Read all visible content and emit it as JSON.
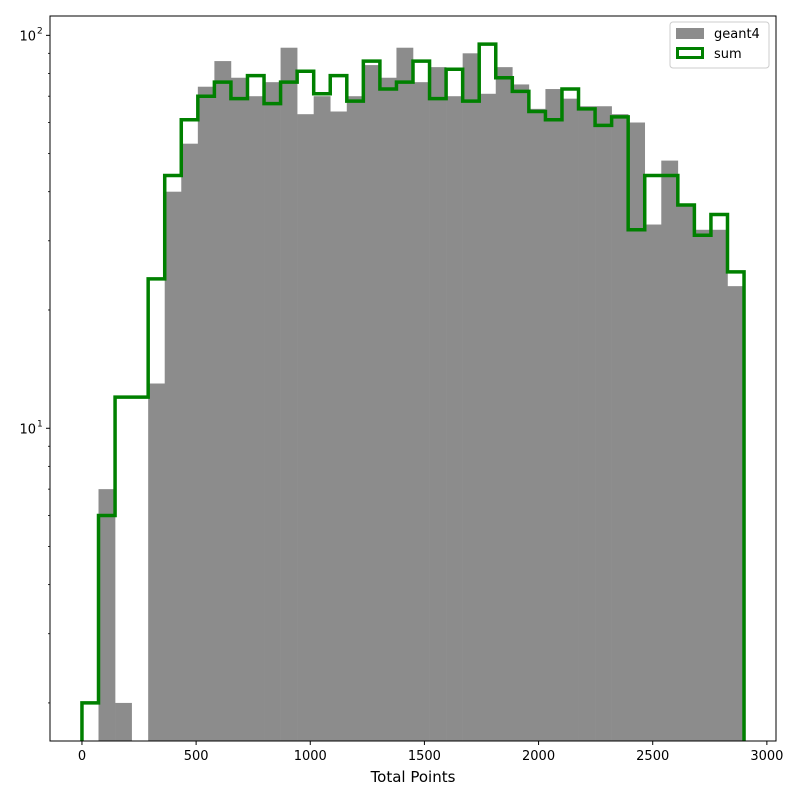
{
  "chart_data": {
    "type": "histogram",
    "xlabel": "Total Points",
    "ylabel": "",
    "title": "",
    "y_scale": "log",
    "xlim": [
      -140,
      3040
    ],
    "ylim": [
      1.6,
      112
    ],
    "x_ticks": [
      0,
      500,
      1000,
      1500,
      2000,
      2500,
      3000
    ],
    "y_ticks": [
      {
        "value": 10,
        "base": "10",
        "exp": "1"
      },
      {
        "value": 100,
        "base": "10",
        "exp": "2"
      }
    ],
    "grid": false,
    "legend_position": "upper right",
    "bin_edges": [
      0,
      72.5,
      145,
      217.5,
      290,
      362.5,
      435,
      507.5,
      580,
      652.5,
      725,
      797.5,
      870,
      942.5,
      1015,
      1087.5,
      1160,
      1232.5,
      1305,
      1377.5,
      1450,
      1522.5,
      1595,
      1667.5,
      1740,
      1812.5,
      1885,
      1957.5,
      2030,
      2102.5,
      2175,
      2247.5,
      2320,
      2392.5,
      2465,
      2537.5,
      2610,
      2682.5,
      2755,
      2827.5,
      2900
    ],
    "series": [
      {
        "name": "geant4",
        "style": "filled",
        "color": "#8c8c8c",
        "counts": [
          0,
          7,
          2,
          0,
          13,
          40,
          53,
          74,
          86,
          78,
          70,
          76,
          93,
          63,
          70,
          64,
          70,
          84,
          78,
          93,
          76,
          83,
          70,
          90,
          71,
          83,
          75,
          65,
          73,
          69,
          66,
          66,
          63,
          60,
          33,
          48,
          37,
          32,
          32,
          23
        ]
      },
      {
        "name": "sum",
        "style": "step",
        "color": "#008000",
        "counts": [
          2,
          6,
          12,
          12,
          24,
          44,
          61,
          70,
          76,
          69,
          79,
          67,
          76,
          81,
          71,
          79,
          68,
          86,
          73,
          76,
          86,
          69,
          82,
          68,
          95,
          78,
          72,
          64,
          61,
          73,
          65,
          59,
          62,
          32,
          44,
          44,
          37,
          31,
          35,
          25
        ]
      }
    ]
  }
}
